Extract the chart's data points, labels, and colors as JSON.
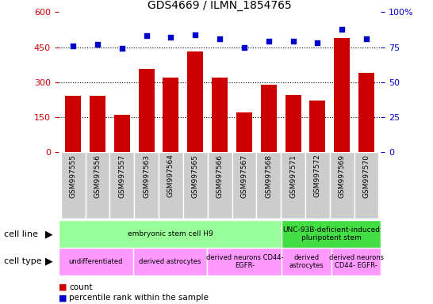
{
  "title": "GDS4669 / ILMN_1854765",
  "samples": [
    "GSM997555",
    "GSM997556",
    "GSM997557",
    "GSM997563",
    "GSM997564",
    "GSM997565",
    "GSM997566",
    "GSM997567",
    "GSM997568",
    "GSM997571",
    "GSM997572",
    "GSM997569",
    "GSM997570"
  ],
  "counts": [
    240,
    240,
    160,
    355,
    320,
    430,
    320,
    170,
    290,
    245,
    220,
    490,
    340
  ],
  "percentiles": [
    76,
    77,
    74,
    83,
    82,
    84,
    81,
    75,
    79,
    79,
    78,
    88,
    81
  ],
  "left_ylim": [
    0,
    600
  ],
  "right_ylim": [
    0,
    100
  ],
  "left_yticks": [
    0,
    150,
    300,
    450,
    600
  ],
  "right_yticks": [
    0,
    25,
    50,
    75,
    100
  ],
  "bar_color": "#cc0000",
  "dot_color": "#0000cc",
  "xtick_bg_color": "#cccccc",
  "dotted_lines": [
    150,
    300,
    450
  ],
  "cell_line_labels": [
    {
      "text": "embryonic stem cell H9",
      "start": 0,
      "end": 9,
      "color": "#99ff99"
    },
    {
      "text": "UNC-93B-deficient-induced\npluripotent stem",
      "start": 9,
      "end": 13,
      "color": "#44dd44"
    }
  ],
  "cell_type_labels": [
    {
      "text": "undifferentiated",
      "start": 0,
      "end": 3,
      "color": "#ff99ff"
    },
    {
      "text": "derived astrocytes",
      "start": 3,
      "end": 6,
      "color": "#ff99ff"
    },
    {
      "text": "derived neurons CD44-\nEGFR-",
      "start": 6,
      "end": 9,
      "color": "#ff99ff"
    },
    {
      "text": "derived\nastrocytes",
      "start": 9,
      "end": 11,
      "color": "#ff99ff"
    },
    {
      "text": "derived neurons\nCD44- EGFR-",
      "start": 11,
      "end": 13,
      "color": "#ff99ff"
    }
  ],
  "row_label_cell_line": "cell line",
  "row_label_cell_type": "cell type",
  "left_ylabel_color": "#cc0000",
  "right_ylabel_color": "#0000cc",
  "legend_count_color": "#cc0000",
  "legend_dot_color": "#0000cc"
}
